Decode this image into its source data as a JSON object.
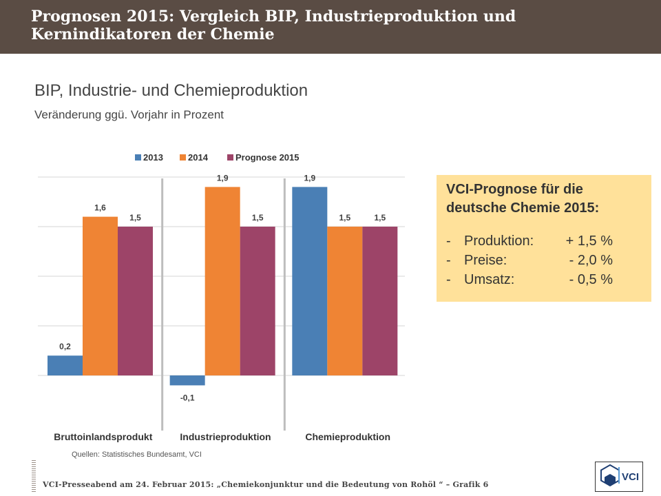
{
  "header": {
    "title": "Prognosen 2015: Vergleich BIP, Industrieproduktion und Kernindikatoren der Chemie"
  },
  "chart_data": {
    "type": "bar",
    "title": "BIP, Industrie- und Chemieproduktion",
    "subtitle": "Veränderung ggü. Vorjahr in Prozent",
    "categories": [
      "Bruttoinlandsprodukt",
      "Industrieproduktion",
      "Chemieproduktion"
    ],
    "series": [
      {
        "name": "2013",
        "values": [
          0.2,
          -0.1,
          1.9
        ],
        "labels": [
          "0,2",
          "-0,1",
          "1,9"
        ],
        "color": "#4a7fb5"
      },
      {
        "name": "2014",
        "values": [
          1.6,
          1.9,
          1.5
        ],
        "labels": [
          "1,6",
          "1,9",
          "1,5"
        ],
        "color": "#ef8434"
      },
      {
        "name": "Prognose 2015",
        "values": [
          1.5,
          1.5,
          1.5
        ],
        "labels": [
          "1,5",
          "1,5",
          "1,5"
        ],
        "color": "#9d4468"
      }
    ],
    "ylim": [
      -0.5,
      2.0
    ],
    "gridlines": [
      0,
      0.5,
      1.0,
      1.5,
      2.0
    ],
    "legend_position": "top",
    "source": "Quellen:  Statistisches Bundesamt, VCI"
  },
  "forecast_box": {
    "title": "VCI-Prognose für die deutsche Chemie 2015:",
    "items": [
      {
        "dash": "-",
        "name": "Produktion:",
        "value": "+ 1,5 %"
      },
      {
        "dash": "-",
        "name": "Preise:",
        "value": "- 2,0 %"
      },
      {
        "dash": "-",
        "name": "Umsatz:",
        "value": "- 0,5 %"
      }
    ]
  },
  "footer": {
    "text": "VCI-Presseabend am 24. Februar 2015: „Chemiekonjunktur und die Bedeutung von Rohöl “ – Grafik 6"
  },
  "logo": {
    "text": "VCI"
  },
  "colors": {
    "header_bg": "#5a4c44",
    "box_bg": "#ffe19a"
  }
}
